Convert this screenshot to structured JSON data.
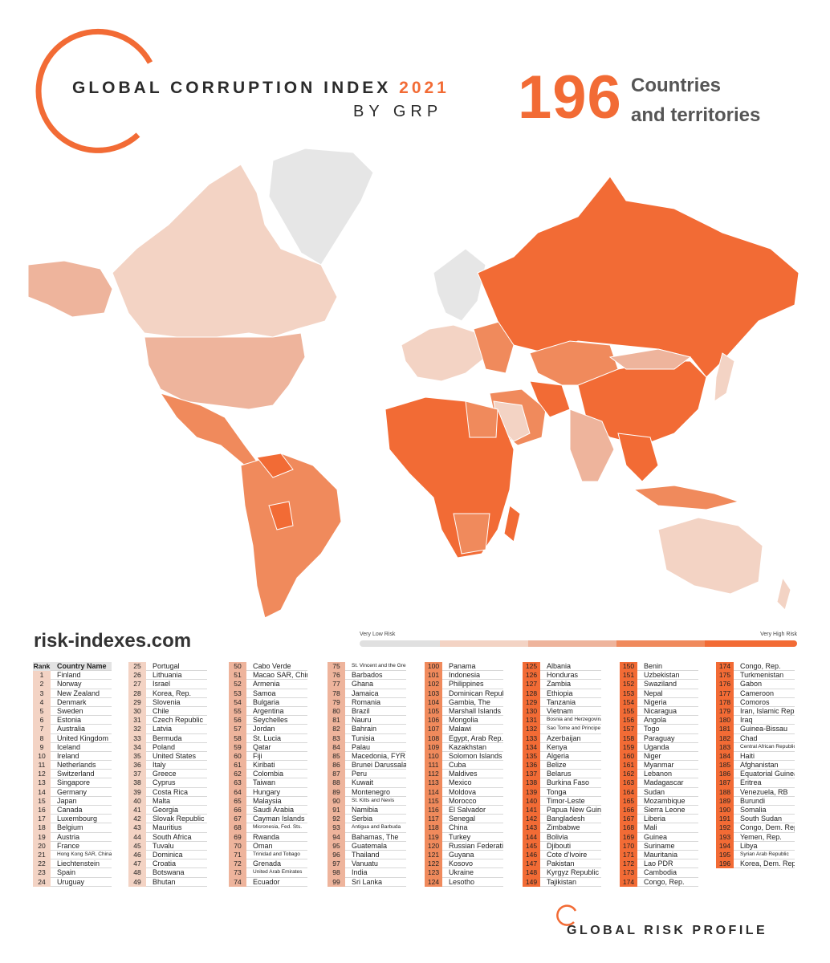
{
  "header": {
    "title": "GLOBAL CORRUPTION INDEX",
    "year": "2021",
    "byline": "BY GRP",
    "count": "196",
    "count_label_1": "Countries",
    "count_label_2": "and territories"
  },
  "website": "risk-indexes.com",
  "legend": {
    "low": "Very Low Risk",
    "high": "Very High Risk",
    "colors": [
      "#e0e0e0",
      "#f3d3c4",
      "#eeb49c",
      "#f08a5c",
      "#f26b35"
    ]
  },
  "table_headers": {
    "rank": "Rank",
    "country": "Country Name"
  },
  "risk_colors": {
    "very_low": "#f3d3c4",
    "low": "#eeb49c",
    "high": "#f08a5c",
    "very_high": "#f26b35"
  },
  "columns": [
    [
      [
        "1",
        "Finland"
      ],
      [
        "2",
        "Norway"
      ],
      [
        "3",
        "New Zealand"
      ],
      [
        "4",
        "Denmark"
      ],
      [
        "5",
        "Sweden"
      ],
      [
        "6",
        "Estonia"
      ],
      [
        "7",
        "Australia"
      ],
      [
        "8",
        "United Kingdom"
      ],
      [
        "9",
        "Iceland"
      ],
      [
        "10",
        "Ireland"
      ],
      [
        "11",
        "Netherlands"
      ],
      [
        "12",
        "Switzerland"
      ],
      [
        "13",
        "Singapore"
      ],
      [
        "14",
        "Germany"
      ],
      [
        "15",
        "Japan"
      ],
      [
        "16",
        "Canada"
      ],
      [
        "17",
        "Luxembourg"
      ],
      [
        "18",
        "Belgium"
      ],
      [
        "19",
        "Austria"
      ],
      [
        "20",
        "France"
      ],
      [
        "21",
        "Hong Kong SAR, China"
      ],
      [
        "22",
        "Liechtenstein"
      ],
      [
        "23",
        "Spain"
      ],
      [
        "24",
        "Uruguay"
      ]
    ],
    [
      [
        "25",
        "Portugal"
      ],
      [
        "26",
        "Lithuania"
      ],
      [
        "27",
        "Israel"
      ],
      [
        "28",
        "Korea, Rep."
      ],
      [
        "29",
        "Slovenia"
      ],
      [
        "30",
        "Chile"
      ],
      [
        "31",
        "Czech Republic"
      ],
      [
        "32",
        "Latvia"
      ],
      [
        "33",
        "Bermuda"
      ],
      [
        "34",
        "Poland"
      ],
      [
        "35",
        "United States"
      ],
      [
        "36",
        "Italy"
      ],
      [
        "37",
        "Greece"
      ],
      [
        "38",
        "Cyprus"
      ],
      [
        "39",
        "Costa Rica"
      ],
      [
        "40",
        "Malta"
      ],
      [
        "41",
        "Georgia"
      ],
      [
        "42",
        "Slovak Republic"
      ],
      [
        "43",
        "Mauritius"
      ],
      [
        "44",
        "South Africa"
      ],
      [
        "45",
        "Tuvalu"
      ],
      [
        "46",
        "Dominica"
      ],
      [
        "47",
        "Croatia"
      ],
      [
        "48",
        "Botswana"
      ],
      [
        "49",
        "Bhutan"
      ]
    ],
    [
      [
        "50",
        "Cabo Verde"
      ],
      [
        "51",
        "Macao SAR, China"
      ],
      [
        "52",
        "Armenia"
      ],
      [
        "53",
        "Samoa"
      ],
      [
        "54",
        "Bulgaria"
      ],
      [
        "55",
        "Argentina"
      ],
      [
        "56",
        "Seychelles"
      ],
      [
        "57",
        "Jordan"
      ],
      [
        "58",
        "St. Lucia"
      ],
      [
        "59",
        "Qatar"
      ],
      [
        "60",
        "Fiji"
      ],
      [
        "61",
        "Kiribati"
      ],
      [
        "62",
        "Colombia"
      ],
      [
        "63",
        "Taiwan"
      ],
      [
        "64",
        "Hungary"
      ],
      [
        "65",
        "Malaysia"
      ],
      [
        "66",
        "Saudi Arabia"
      ],
      [
        "67",
        "Cayman Islands"
      ],
      [
        "68",
        "Micronesia, Fed. Sts."
      ],
      [
        "69",
        "Rwanda"
      ],
      [
        "70",
        "Oman"
      ],
      [
        "71",
        "Trinidad and Tobago"
      ],
      [
        "72",
        "Grenada"
      ],
      [
        "73",
        "United Arab Emirates"
      ],
      [
        "74",
        "Ecuador"
      ]
    ],
    [
      [
        "75",
        "St. Vincent and the Grenadines"
      ],
      [
        "76",
        "Barbados"
      ],
      [
        "77",
        "Ghana"
      ],
      [
        "78",
        "Jamaica"
      ],
      [
        "79",
        "Romania"
      ],
      [
        "80",
        "Brazil"
      ],
      [
        "81",
        "Nauru"
      ],
      [
        "82",
        "Bahrain"
      ],
      [
        "83",
        "Tunisia"
      ],
      [
        "84",
        "Palau"
      ],
      [
        "85",
        "Macedonia, FYR"
      ],
      [
        "86",
        "Brunei Darussalam"
      ],
      [
        "87",
        "Peru"
      ],
      [
        "88",
        "Kuwait"
      ],
      [
        "89",
        "Montenegro"
      ],
      [
        "90",
        "St. Kitts and Nevis"
      ],
      [
        "91",
        "Namibia"
      ],
      [
        "92",
        "Serbia"
      ],
      [
        "93",
        "Antigua and Barbuda"
      ],
      [
        "94",
        "Bahamas, The"
      ],
      [
        "95",
        "Guatemala"
      ],
      [
        "96",
        "Thailand"
      ],
      [
        "97",
        "Vanuatu"
      ],
      [
        "98",
        "India"
      ],
      [
        "99",
        "Sri Lanka"
      ]
    ],
    [
      [
        "100",
        "Panama"
      ],
      [
        "101",
        "Indonesia"
      ],
      [
        "102",
        "Philippines"
      ],
      [
        "103",
        "Dominican Republic"
      ],
      [
        "104",
        "Gambia, The"
      ],
      [
        "105",
        "Marshall Islands"
      ],
      [
        "106",
        "Mongolia"
      ],
      [
        "107",
        "Malawi"
      ],
      [
        "108",
        "Egypt, Arab Rep."
      ],
      [
        "109",
        "Kazakhstan"
      ],
      [
        "110",
        "Solomon Islands"
      ],
      [
        "111",
        "Cuba"
      ],
      [
        "112",
        "Maldives"
      ],
      [
        "113",
        "Mexico"
      ],
      [
        "114",
        "Moldova"
      ],
      [
        "115",
        "Morocco"
      ],
      [
        "116",
        "El Salvador"
      ],
      [
        "117",
        "Senegal"
      ],
      [
        "118",
        "China"
      ],
      [
        "119",
        "Turkey"
      ],
      [
        "120",
        "Russian Federation"
      ],
      [
        "121",
        "Guyana"
      ],
      [
        "122",
        "Kosovo"
      ],
      [
        "123",
        "Ukraine"
      ],
      [
        "124",
        "Lesotho"
      ]
    ],
    [
      [
        "125",
        "Albania"
      ],
      [
        "126",
        "Honduras"
      ],
      [
        "127",
        "Zambia"
      ],
      [
        "128",
        "Ethiopia"
      ],
      [
        "129",
        "Tanzania"
      ],
      [
        "130",
        "Vietnam"
      ],
      [
        "131",
        "Bosnia and Herzegovina"
      ],
      [
        "132",
        "Sao Tome and Principe"
      ],
      [
        "133",
        "Azerbaijan"
      ],
      [
        "134",
        "Kenya"
      ],
      [
        "135",
        "Algeria"
      ],
      [
        "136",
        "Belize"
      ],
      [
        "137",
        "Belarus"
      ],
      [
        "138",
        "Burkina Faso"
      ],
      [
        "139",
        "Tonga"
      ],
      [
        "140",
        "Timor-Leste"
      ],
      [
        "141",
        "Papua New Guinea"
      ],
      [
        "142",
        "Bangladesh"
      ],
      [
        "143",
        "Zimbabwe"
      ],
      [
        "144",
        "Bolivia"
      ],
      [
        "145",
        "Djibouti"
      ],
      [
        "146",
        "Cote d'Ivoire"
      ],
      [
        "147",
        "Pakistan"
      ],
      [
        "148",
        "Kyrgyz Republic"
      ],
      [
        "149",
        "Tajikistan"
      ]
    ],
    [
      [
        "150",
        "Benin"
      ],
      [
        "151",
        "Uzbekistan"
      ],
      [
        "152",
        "Swaziland"
      ],
      [
        "153",
        "Nepal"
      ],
      [
        "154",
        "Nigeria"
      ],
      [
        "155",
        "Nicaragua"
      ],
      [
        "156",
        "Angola"
      ],
      [
        "157",
        "Togo"
      ],
      [
        "158",
        "Paraguay"
      ],
      [
        "159",
        "Uganda"
      ],
      [
        "160",
        "Niger"
      ],
      [
        "161",
        "Myanmar"
      ],
      [
        "162",
        "Lebanon"
      ],
      [
        "163",
        "Madagascar"
      ],
      [
        "164",
        "Sudan"
      ],
      [
        "165",
        "Mozambique"
      ],
      [
        "166",
        "Sierra Leone"
      ],
      [
        "167",
        "Liberia"
      ],
      [
        "168",
        "Mali"
      ],
      [
        "169",
        "Guinea"
      ],
      [
        "170",
        "Suriname"
      ],
      [
        "171",
        "Mauritania"
      ],
      [
        "172",
        "Lao PDR"
      ],
      [
        "173",
        "Cambodia"
      ],
      [
        "174",
        "Congo, Rep."
      ]
    ],
    [
      [
        "174",
        "Congo, Rep."
      ],
      [
        "175",
        "Turkmenistan"
      ],
      [
        "176",
        "Gabon"
      ],
      [
        "177",
        "Cameroon"
      ],
      [
        "178",
        "Comoros"
      ],
      [
        "179",
        "Iran, Islamic Rep."
      ],
      [
        "180",
        "Iraq"
      ],
      [
        "181",
        "Guinea-Bissau"
      ],
      [
        "182",
        "Chad"
      ],
      [
        "183",
        "Central African Republic"
      ],
      [
        "184",
        "Haiti"
      ],
      [
        "185",
        "Afghanistan"
      ],
      [
        "186",
        "Equatorial Guinea"
      ],
      [
        "187",
        "Eritrea"
      ],
      [
        "188",
        "Venezuela, RB"
      ],
      [
        "189",
        "Burundi"
      ],
      [
        "190",
        "Somalia"
      ],
      [
        "191",
        "South Sudan"
      ],
      [
        "192",
        "Congo, Dem. Rep."
      ],
      [
        "193",
        "Yemen, Rep."
      ],
      [
        "194",
        "Libya"
      ],
      [
        "195",
        "Syrian Arab Republic"
      ],
      [
        "196",
        "Korea, Dem. Rep."
      ]
    ]
  ],
  "footer": "GLOBAL RISK PROFILE"
}
